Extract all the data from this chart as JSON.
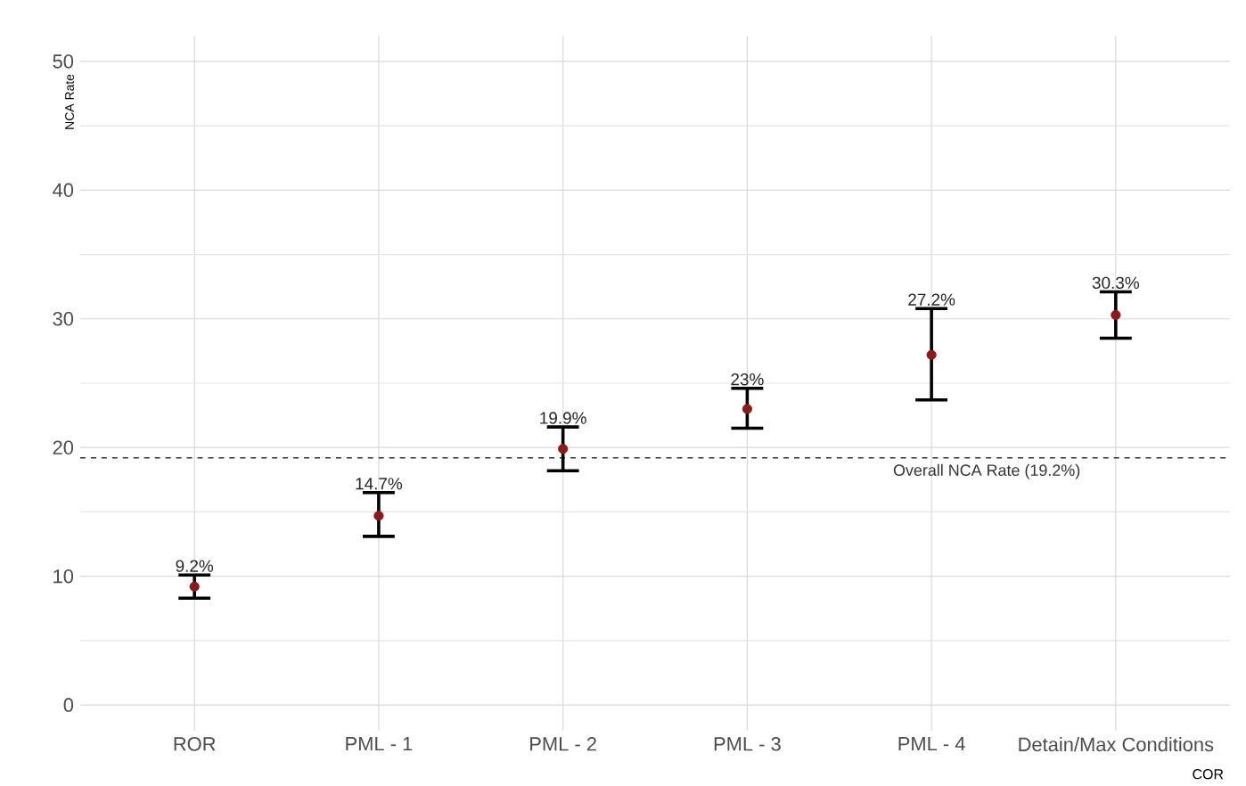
{
  "chart_data": {
    "type": "scatter",
    "xlabel": "COR",
    "ylabel": "NCA Rate",
    "categories": [
      "ROR",
      "PML - 1",
      "PML - 2",
      "PML - 3",
      "PML - 4",
      "Detain/Max Conditions"
    ],
    "values": [
      9.2,
      14.7,
      19.9,
      23,
      27.2,
      30.3
    ],
    "errors": [
      [
        8.3,
        10.1
      ],
      [
        13.1,
        16.5
      ],
      [
        18.2,
        21.6
      ],
      [
        21.5,
        24.6
      ],
      [
        23.7,
        30.8
      ],
      [
        28.5,
        32.1
      ]
    ],
    "value_labels": [
      "9.2%",
      "14.7%",
      "19.9%",
      "23%",
      "27.2%",
      "30.3%"
    ],
    "color": "#8b1a1a",
    "marker": "circle",
    "ylim": [
      -2,
      52
    ],
    "yticks": [
      0,
      10,
      20,
      30,
      40,
      50
    ],
    "grid": true,
    "ref_lines": [
      {
        "axis": "y",
        "value": 19.2,
        "label": "Overall NCA Rate (19.2%)",
        "color": "#333333",
        "line_style": "dashed"
      }
    ]
  }
}
